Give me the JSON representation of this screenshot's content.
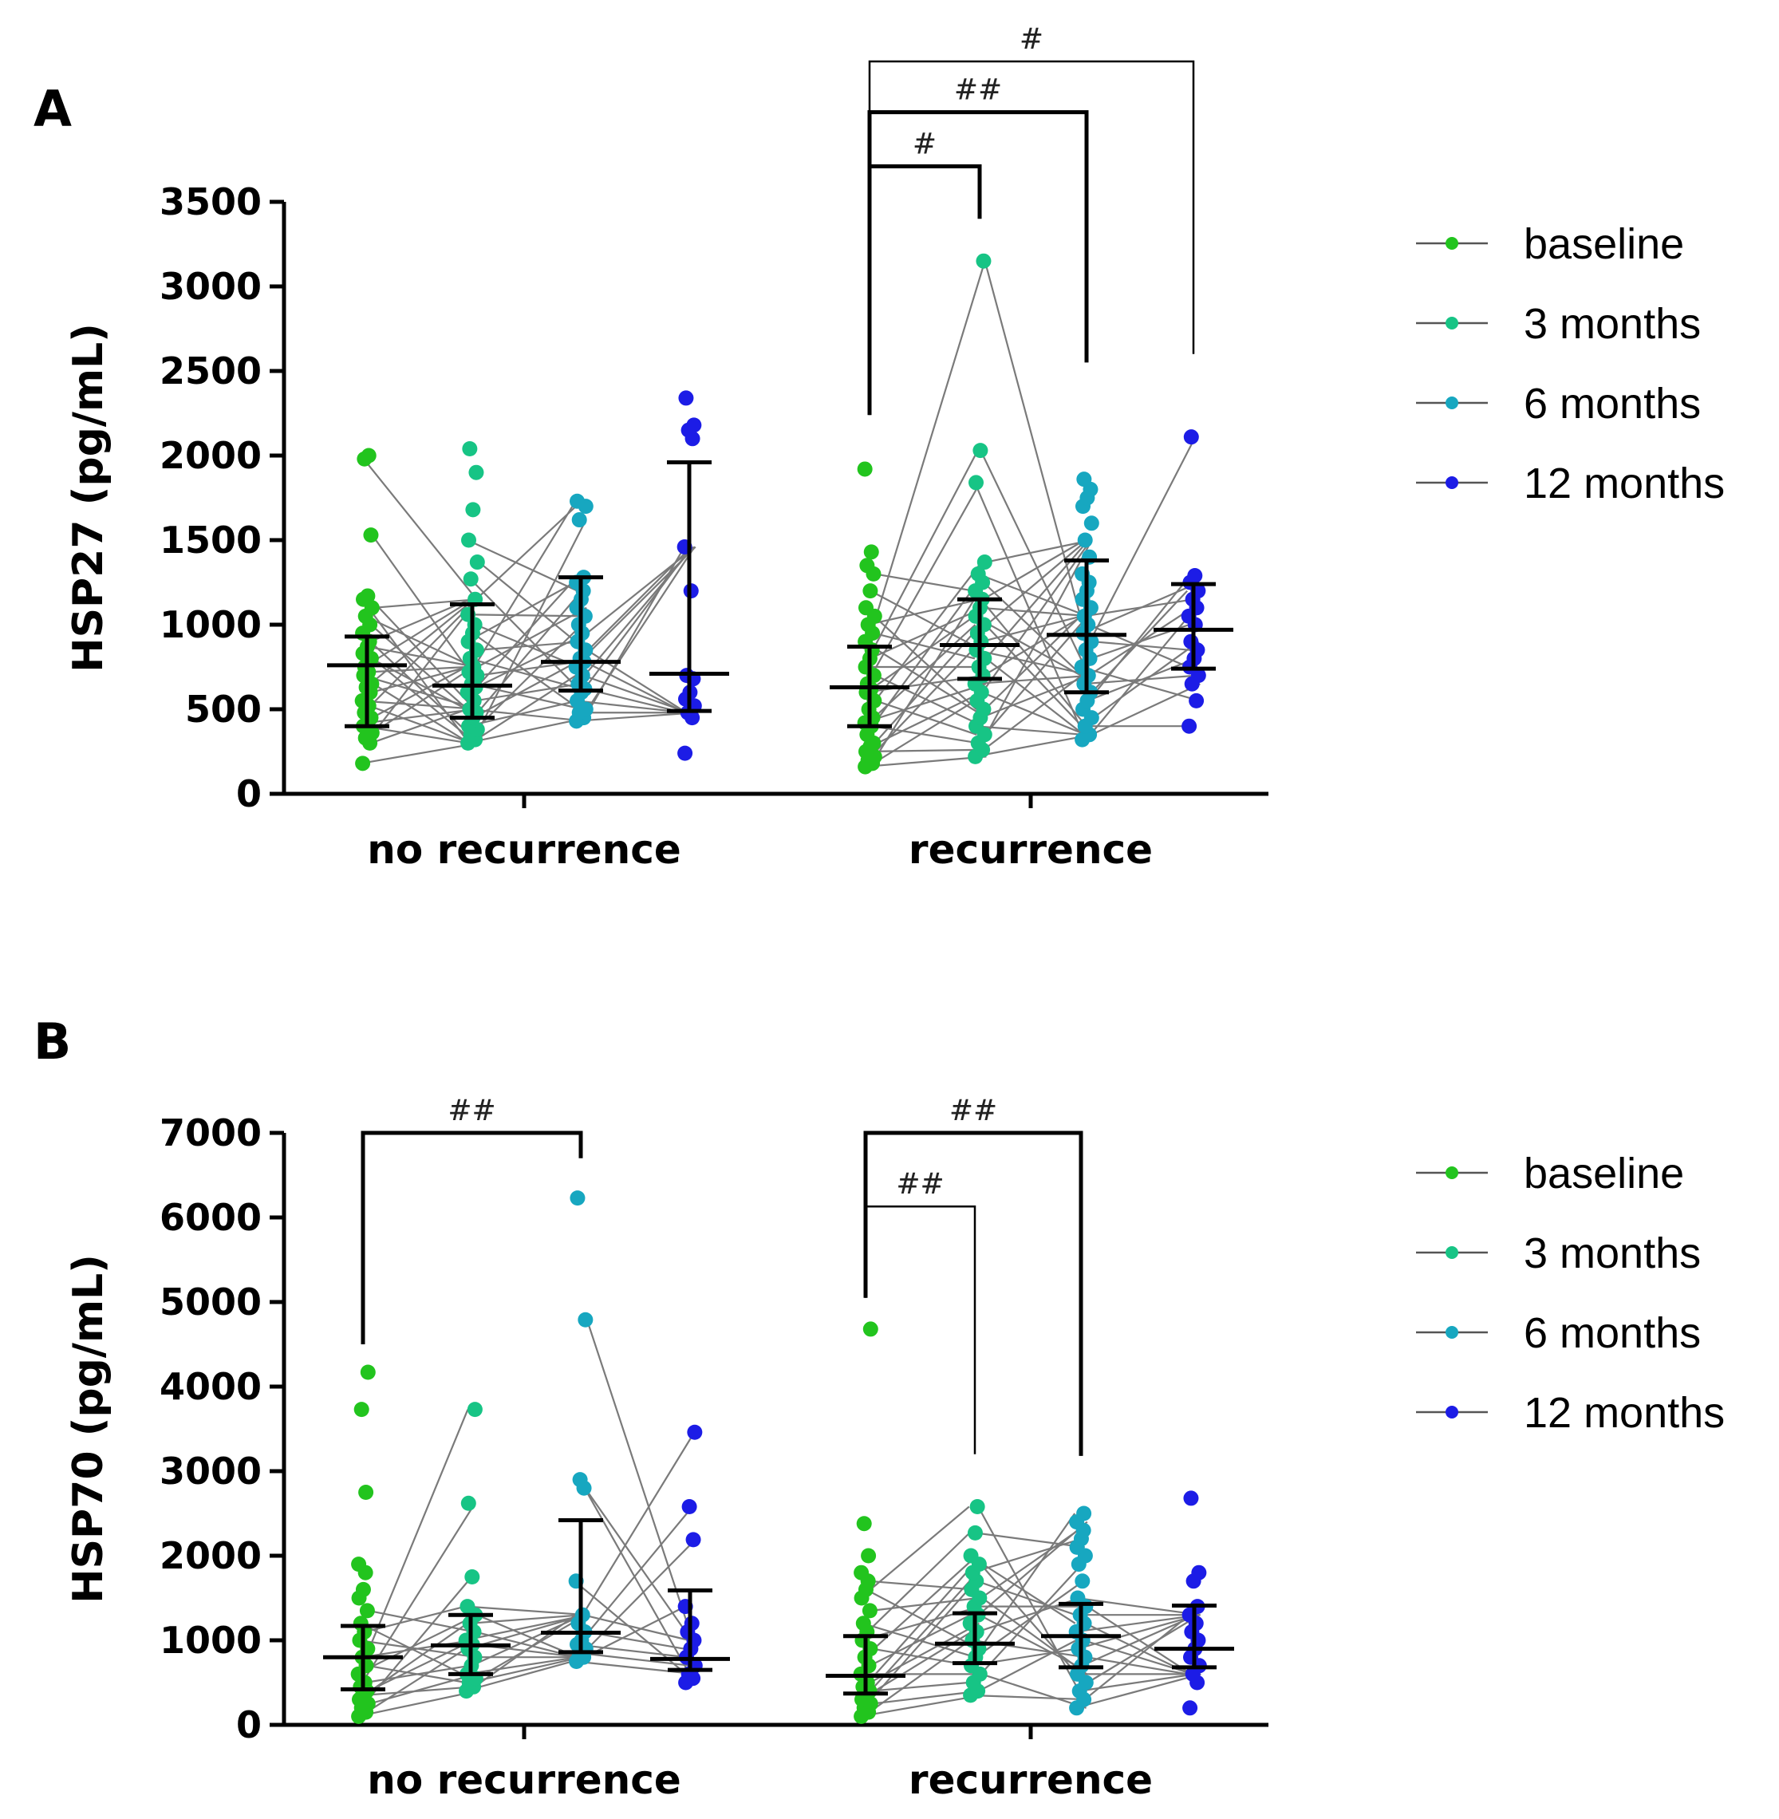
{
  "colors": {
    "baseline": "#22c41e",
    "3 months": "#17c485",
    "6 months": "#17a7c0",
    "12 months": "#1c1ce6",
    "lines": "#7a7a7a",
    "axis": "#000000"
  },
  "chart_data": [
    {
      "panel": "A",
      "type": "scatter",
      "ylabel": "HSP27 (pg/mL)",
      "ylim": [
        0,
        3500
      ],
      "yticks": [
        0,
        500,
        1000,
        1500,
        2000,
        2500,
        3000,
        3500
      ],
      "categories": [
        "no recurrence",
        "recurrence"
      ],
      "series_names": [
        "baseline",
        "3 months",
        "6 months",
        "12 months"
      ],
      "legend": [
        "baseline",
        "3 months",
        "6 months",
        "12 months"
      ],
      "groups": [
        {
          "name": "no recurrence",
          "points": {
            "baseline": [
              180,
              300,
              330,
              360,
              400,
              420,
              450,
              480,
              520,
              550,
              600,
              630,
              650,
              700,
              720,
              750,
              800,
              830,
              870,
              900,
              950,
              1000,
              1050,
              1100,
              1150,
              1170,
              1530,
              1980,
              2000
            ],
            "3 months": [
              300,
              320,
              350,
              380,
              400,
              450,
              480,
              500,
              550,
              600,
              630,
              650,
              700,
              720,
              750,
              800,
              850,
              900,
              950,
              1000,
              1060,
              1150,
              1270,
              1370,
              1500,
              1680,
              1900,
              2040
            ],
            "6 months": [
              430,
              450,
              480,
              500,
              550,
              600,
              620,
              650,
              700,
              750,
              780,
              800,
              850,
              900,
              950,
              1000,
              1050,
              1100,
              1150,
              1200,
              1250,
              1280,
              1620,
              1700,
              1730
            ],
            "12 months": [
              240,
              450,
              480,
              520,
              560,
              600,
              680,
              700,
              1200,
              1460,
              2100,
              2150,
              2180,
              2340
            ]
          },
          "summary": [
            {
              "median": 760,
              "q1": 400,
              "q3": 930
            },
            {
              "median": 640,
              "q1": 450,
              "q3": 1120
            },
            {
              "median": 780,
              "q1": 610,
              "q3": 1280
            },
            {
              "median": 710,
              "q1": 490,
              "q3": 1960
            }
          ],
          "brackets": []
        },
        {
          "name": "recurrence",
          "points": {
            "baseline": [
              160,
              180,
              200,
              220,
              250,
              280,
              300,
              350,
              400,
              420,
              450,
              500,
              550,
              600,
              620,
              650,
              700,
              750,
              800,
              850,
              900,
              950,
              1000,
              1050,
              1100,
              1200,
              1300,
              1350,
              1430,
              1920
            ],
            "3 months": [
              220,
              260,
              300,
              350,
              400,
              450,
              500,
              550,
              600,
              650,
              700,
              750,
              800,
              850,
              900,
              950,
              1000,
              1050,
              1100,
              1150,
              1200,
              1250,
              1300,
              1370,
              1840,
              2030,
              3150
            ],
            "6 months": [
              320,
              350,
              400,
              450,
              500,
              550,
              600,
              650,
              700,
              750,
              800,
              850,
              900,
              950,
              1000,
              1050,
              1100,
              1150,
              1200,
              1250,
              1300,
              1400,
              1500,
              1600,
              1700,
              1750,
              1800,
              1860
            ],
            "12 months": [
              400,
              550,
              650,
              700,
              750,
              800,
              850,
              900,
              1000,
              1050,
              1100,
              1150,
              1200,
              1250,
              1290,
              2110
            ]
          },
          "summary": [
            {
              "median": 630,
              "q1": 400,
              "q3": 870
            },
            {
              "median": 880,
              "q1": 680,
              "q3": 1150
            },
            {
              "median": 940,
              "q1": 600,
              "q3": 1380
            },
            {
              "median": 970,
              "q1": 740,
              "q3": 1240
            }
          ],
          "brackets": [
            {
              "from": 0,
              "to": 1,
              "label": "#",
              "top": 3710,
              "left_drop": 2240,
              "right_drop": 3400,
              "thick": true
            },
            {
              "from": 0,
              "to": 2,
              "label": "##",
              "top": 4030,
              "left_drop": 2240,
              "right_drop": 2550,
              "thick": true
            },
            {
              "from": 0,
              "to": 3,
              "label": "#",
              "top": 4330,
              "left_drop": 2240,
              "right_drop": 2600,
              "thick": false
            }
          ]
        }
      ]
    },
    {
      "panel": "B",
      "type": "scatter",
      "ylabel": "HSP70 (pg/mL)",
      "ylim": [
        0,
        7000
      ],
      "yticks": [
        0,
        1000,
        2000,
        3000,
        4000,
        5000,
        6000,
        7000
      ],
      "categories": [
        "no recurrence",
        "recurrence"
      ],
      "series_names": [
        "baseline",
        "3 months",
        "6 months",
        "12 months"
      ],
      "legend": [
        "baseline",
        "3 months",
        "6 months",
        "12 months"
      ],
      "groups": [
        {
          "name": "no recurrence",
          "points": {
            "baseline": [
              100,
              150,
              200,
              250,
              300,
              350,
              400,
              450,
              500,
              600,
              700,
              800,
              900,
              1000,
              1100,
              1200,
              1350,
              1500,
              1600,
              1800,
              1900,
              2750,
              3730,
              4170
            ],
            "3 months": [
              400,
              450,
              500,
              550,
              600,
              700,
              800,
              900,
              950,
              1000,
              1100,
              1200,
              1300,
              1400,
              1750,
              2620,
              3730
            ],
            "6 months": [
              750,
              800,
              850,
              900,
              950,
              1000,
              1100,
              1200,
              1300,
              1700,
              2800,
              2900,
              4790,
              6230
            ],
            "12 months": [
              500,
              550,
              600,
              700,
              800,
              900,
              1000,
              1100,
              1200,
              1400,
              2190,
              2580,
              3460
            ]
          },
          "summary": [
            {
              "median": 800,
              "q1": 420,
              "q3": 1170
            },
            {
              "median": 940,
              "q1": 600,
              "q3": 1300
            },
            {
              "median": 1090,
              "q1": 860,
              "q3": 2420
            },
            {
              "median": 780,
              "q1": 650,
              "q3": 1590
            }
          ],
          "brackets": [
            {
              "from": 0,
              "to": 2,
              "label": "##",
              "top": 7000,
              "left_drop": 4500,
              "right_drop": 6700,
              "thick": true
            }
          ]
        },
        {
          "name": "recurrence",
          "points": {
            "baseline": [
              100,
              150,
              200,
              250,
              300,
              350,
              400,
              450,
              500,
              600,
              700,
              800,
              900,
              1000,
              1100,
              1200,
              1350,
              1500,
              1600,
              1700,
              1800,
              2000,
              2380,
              4680
            ],
            "3 months": [
              350,
              400,
              500,
              600,
              700,
              800,
              900,
              1000,
              1100,
              1200,
              1300,
              1400,
              1500,
              1600,
              1700,
              1800,
              1900,
              2000,
              2270,
              2580
            ],
            "6 months": [
              200,
              300,
              400,
              500,
              600,
              700,
              800,
              900,
              1000,
              1100,
              1200,
              1300,
              1400,
              1500,
              1700,
              1900,
              2000,
              2100,
              2200,
              2300,
              2400,
              2500
            ],
            "12 months": [
              200,
              500,
              600,
              700,
              800,
              900,
              1000,
              1100,
              1200,
              1300,
              1400,
              1700,
              1800,
              2680
            ]
          },
          "summary": [
            {
              "median": 580,
              "q1": 370,
              "q3": 1050
            },
            {
              "median": 960,
              "q1": 730,
              "q3": 1320
            },
            {
              "median": 1050,
              "q1": 680,
              "q3": 1430
            },
            {
              "median": 900,
              "q1": 680,
              "q3": 1410
            }
          ],
          "brackets": [
            {
              "from": 0,
              "to": 2,
              "label": "##",
              "top": 7000,
              "left_drop": 5050,
              "right_drop": 3180,
              "thick": true
            },
            {
              "from": 0,
              "to": 1,
              "label": "##",
              "top": 6130,
              "left_drop": 5050,
              "right_drop": 3200,
              "thick": false
            }
          ]
        }
      ]
    }
  ]
}
